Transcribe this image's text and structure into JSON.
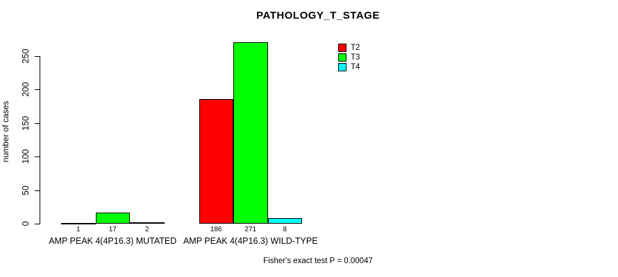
{
  "chart_data": {
    "type": "bar",
    "title": "PATHOLOGY_T_STAGE",
    "ylabel": "number of cases",
    "xlabel": "",
    "categories": [
      "AMP PEAK 4(4P16.3) MUTATED",
      "AMP PEAK 4(4P16.3) WILD-TYPE"
    ],
    "series": [
      {
        "name": "T2",
        "color": "#ff0000",
        "values": [
          1,
          186
        ]
      },
      {
        "name": "T3",
        "color": "#00ff00",
        "values": [
          17,
          271
        ]
      },
      {
        "name": "T4",
        "color": "#00ffff",
        "values": [
          2,
          8
        ]
      }
    ],
    "yticks": [
      0,
      50,
      100,
      150,
      200,
      250
    ],
    "ylim": [
      0,
      280
    ],
    "grid": false,
    "legend_position": "top-right",
    "bar_outline_color": "#000000",
    "annotation": "Fisher's exact test P = 0.00047"
  }
}
